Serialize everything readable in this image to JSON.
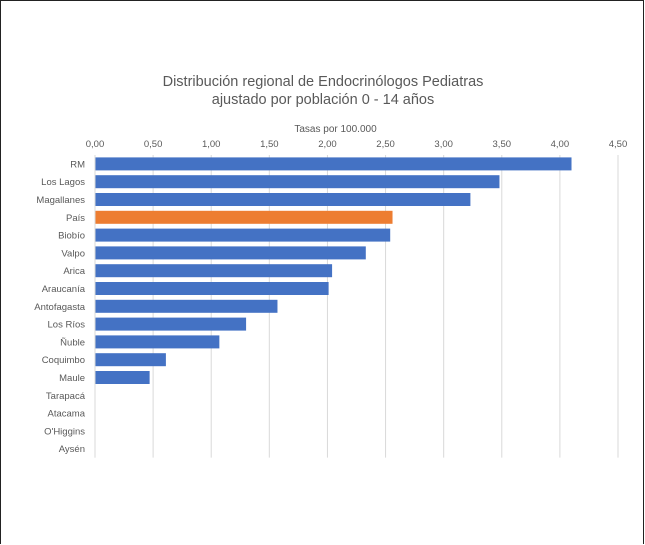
{
  "chart_data": {
    "type": "bar",
    "orientation": "horizontal",
    "title": "Distribución regional de Endocrinólogos Pediatras",
    "subtitle": "ajustado por población 0 - 14 años",
    "xlabel": "Tasas por 100.000",
    "xlim": [
      0,
      4.5
    ],
    "x_ticks": [
      "0,00",
      "0,50",
      "1,00",
      "1,50",
      "2,00",
      "2,50",
      "3,00",
      "3,50",
      "4,00",
      "4,50"
    ],
    "x_axis_position": "top",
    "grid": true,
    "categories": [
      "RM",
      "Los Lagos",
      "Magallanes",
      "País",
      "Biobío",
      "Valpo",
      "Arica",
      "Araucanía",
      "Antofagasta",
      "Los Ríos",
      "Ñuble",
      "Coquimbo",
      "Maule",
      "Tarapacá",
      "Atacama",
      "O'Higgins",
      "Aysén"
    ],
    "values": [
      4.1,
      3.48,
      3.23,
      2.56,
      2.54,
      2.33,
      2.04,
      2.01,
      1.57,
      1.3,
      1.07,
      0.61,
      0.47,
      0,
      0,
      0,
      0
    ],
    "colors": {
      "default": "#4472C4",
      "highlight": "#ED7D31",
      "grid": "#D9D9D9",
      "text": "#595959"
    },
    "highlight_category": "País"
  }
}
